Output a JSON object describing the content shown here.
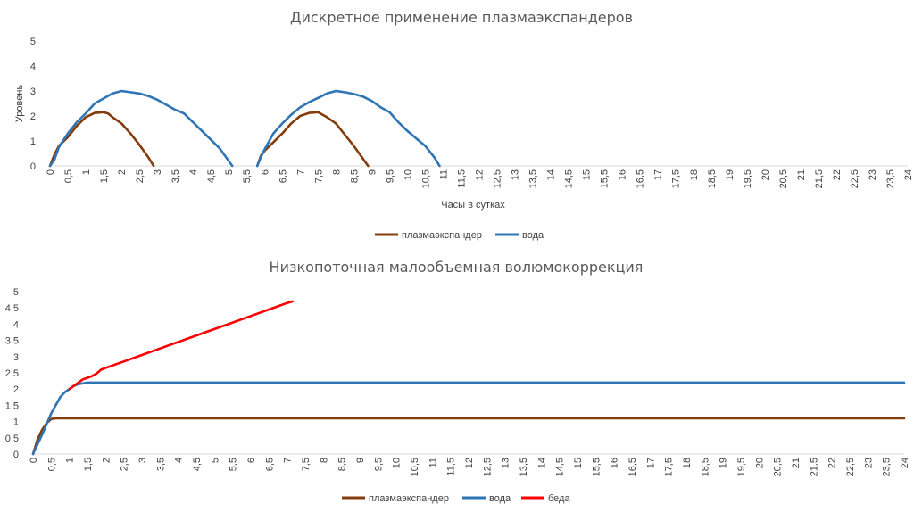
{
  "chart_data": [
    {
      "type": "line",
      "title": "Дискретное применение плазмаэкспандеров",
      "xlabel": "Часы в сутках",
      "ylabel": "Уровень",
      "ylim": [
        0,
        5
      ],
      "yticks": [
        "0",
        "1",
        "2",
        "3",
        "4",
        "5"
      ],
      "x_categories": [
        "0",
        "0,5",
        "1",
        "1,5",
        "2",
        "2,5",
        "3",
        "3,5",
        "4",
        "4,5",
        "5",
        "5,5",
        "6",
        "6,5",
        "7",
        "7,5",
        "8",
        "8,5",
        "9",
        "9,5",
        "10",
        "10,5",
        "11",
        "11,5",
        "12",
        "12,5",
        "13",
        "13,5",
        "14",
        "14,5",
        "15",
        "15,5",
        "16",
        "16,5",
        "17",
        "17,5",
        "18",
        "18,5",
        "19",
        "19,5",
        "20",
        "20,5",
        "21",
        "21,5",
        "22",
        "22,5",
        "23",
        "23,5",
        "24"
      ],
      "grid": false,
      "legend": "bottom",
      "series": [
        {
          "name": "плазмаэкспандер",
          "color": "#843c0c",
          "segments": [
            [
              [
                0,
                0
              ],
              [
                0.25,
                0.45
              ],
              [
                0.5,
                0.8
              ],
              [
                1,
                1.15
              ],
              [
                1.5,
                1.6
              ],
              [
                2,
                1.95
              ],
              [
                2.5,
                2.12
              ],
              [
                3,
                2.15
              ],
              [
                3.25,
                2.1
              ],
              [
                3.5,
                1.95
              ],
              [
                4,
                1.7
              ],
              [
                4.5,
                1.3
              ],
              [
                5,
                0.85
              ],
              [
                5.5,
                0.35
              ],
              [
                5.8,
                0
              ]
            ],
            [
              [
                11.6,
                0
              ],
              [
                11.8,
                0.4
              ],
              [
                12,
                0.6
              ],
              [
                12.5,
                0.95
              ],
              [
                13,
                1.3
              ],
              [
                13.5,
                1.7
              ],
              [
                14,
                2.0
              ],
              [
                14.5,
                2.12
              ],
              [
                15,
                2.15
              ],
              [
                15.5,
                1.95
              ],
              [
                16,
                1.7
              ],
              [
                16.5,
                1.25
              ],
              [
                17,
                0.8
              ],
              [
                17.5,
                0.3
              ],
              [
                17.8,
                0
              ]
            ]
          ]
        },
        {
          "name": "вода",
          "color": "#2e75b6",
          "segments": [
            [
              [
                0,
                0
              ],
              [
                0.25,
                0.25
              ],
              [
                0.5,
                0.75
              ],
              [
                1,
                1.3
              ],
              [
                1.5,
                1.75
              ],
              [
                2,
                2.1
              ],
              [
                2.5,
                2.5
              ],
              [
                3,
                2.7
              ],
              [
                3.5,
                2.9
              ],
              [
                4,
                3.0
              ],
              [
                4.5,
                2.95
              ],
              [
                5,
                2.9
              ],
              [
                5.5,
                2.8
              ],
              [
                6,
                2.65
              ],
              [
                6.5,
                2.45
              ],
              [
                7,
                2.25
              ],
              [
                7.5,
                2.1
              ],
              [
                8,
                1.75
              ],
              [
                8.5,
                1.4
              ],
              [
                9,
                1.05
              ],
              [
                9.5,
                0.7
              ],
              [
                10,
                0.2
              ],
              [
                10.2,
                0
              ]
            ],
            [
              [
                11.6,
                0
              ],
              [
                11.8,
                0.35
              ],
              [
                12,
                0.65
              ],
              [
                12.5,
                1.3
              ],
              [
                13,
                1.7
              ],
              [
                13.5,
                2.05
              ],
              [
                14,
                2.35
              ],
              [
                14.5,
                2.55
              ],
              [
                15,
                2.72
              ],
              [
                15.5,
                2.9
              ],
              [
                16,
                3.0
              ],
              [
                16.5,
                2.95
              ],
              [
                17,
                2.88
              ],
              [
                17.5,
                2.78
              ],
              [
                18,
                2.6
              ],
              [
                18.5,
                2.35
              ],
              [
                19,
                2.15
              ],
              [
                19.5,
                1.75
              ],
              [
                20,
                1.4
              ],
              [
                20.5,
                1.1
              ],
              [
                21,
                0.8
              ],
              [
                21.5,
                0.35
              ],
              [
                21.8,
                0
              ]
            ]
          ]
        }
      ]
    },
    {
      "type": "line",
      "title": "Низкопоточная малообъемная волюмокоррекция",
      "xlabel": "",
      "ylabel": "",
      "ylim": [
        0,
        5
      ],
      "yticks": [
        "0",
        "0,5",
        "1",
        "1,5",
        "2",
        "2,5",
        "3",
        "3,5",
        "4",
        "4,5",
        "5"
      ],
      "x_categories": [
        "0",
        "0,5",
        "1",
        "1,5",
        "2",
        "2,5",
        "3",
        "3,5",
        "4",
        "4,5",
        "5",
        "5,5",
        "6",
        "6,5",
        "7",
        "7,5",
        "8",
        "8,5",
        "9",
        "9,5",
        "10",
        "10,5",
        "11",
        "11,5",
        "12",
        "12,5",
        "13",
        "13,5",
        "14",
        "14,5",
        "15",
        "15,5",
        "16",
        "16,5",
        "17",
        "17,5",
        "18",
        "18,5",
        "19",
        "19,5",
        "20",
        "20,5",
        "21",
        "21,5",
        "22",
        "22,5",
        "23",
        "23,5",
        "24"
      ],
      "grid": false,
      "legend": "bottom",
      "series": [
        {
          "name": "плазмаэкспандер",
          "color": "#843c0c",
          "segments": [
            [
              [
                0,
                0
              ],
              [
                0.25,
                0.45
              ],
              [
                0.5,
                0.75
              ],
              [
                0.75,
                0.95
              ],
              [
                1,
                1.08
              ],
              [
                1.25,
                1.1
              ],
              [
                48,
                1.1
              ]
            ]
          ]
        },
        {
          "name": "вода",
          "color": "#2e75b6",
          "segments": [
            [
              [
                0,
                0
              ],
              [
                0.5,
                0.6
              ],
              [
                1,
                1.25
              ],
              [
                1.5,
                1.75
              ],
              [
                1.75,
                1.9
              ],
              [
                2,
                2.0
              ],
              [
                2.25,
                2.1
              ],
              [
                2.5,
                2.15
              ],
              [
                3,
                2.2
              ],
              [
                48,
                2.2
              ]
            ]
          ]
        },
        {
          "name": "беда",
          "color": "#ff0000",
          "segments": [
            [
              [
                2,
                2.0
              ],
              [
                2.25,
                2.1
              ],
              [
                2.5,
                2.2
              ],
              [
                2.75,
                2.3
              ],
              [
                3,
                2.35
              ],
              [
                3.25,
                2.4
              ],
              [
                3.5,
                2.48
              ],
              [
                3.75,
                2.6
              ],
              [
                4,
                2.65
              ],
              [
                5,
                2.85
              ],
              [
                6,
                3.05
              ],
              [
                7,
                3.25
              ],
              [
                8,
                3.45
              ],
              [
                9,
                3.65
              ],
              [
                10,
                3.85
              ],
              [
                11,
                4.05
              ],
              [
                12,
                4.25
              ],
              [
                13,
                4.45
              ],
              [
                14,
                4.65
              ],
              [
                14.3,
                4.7
              ]
            ]
          ]
        }
      ]
    }
  ]
}
